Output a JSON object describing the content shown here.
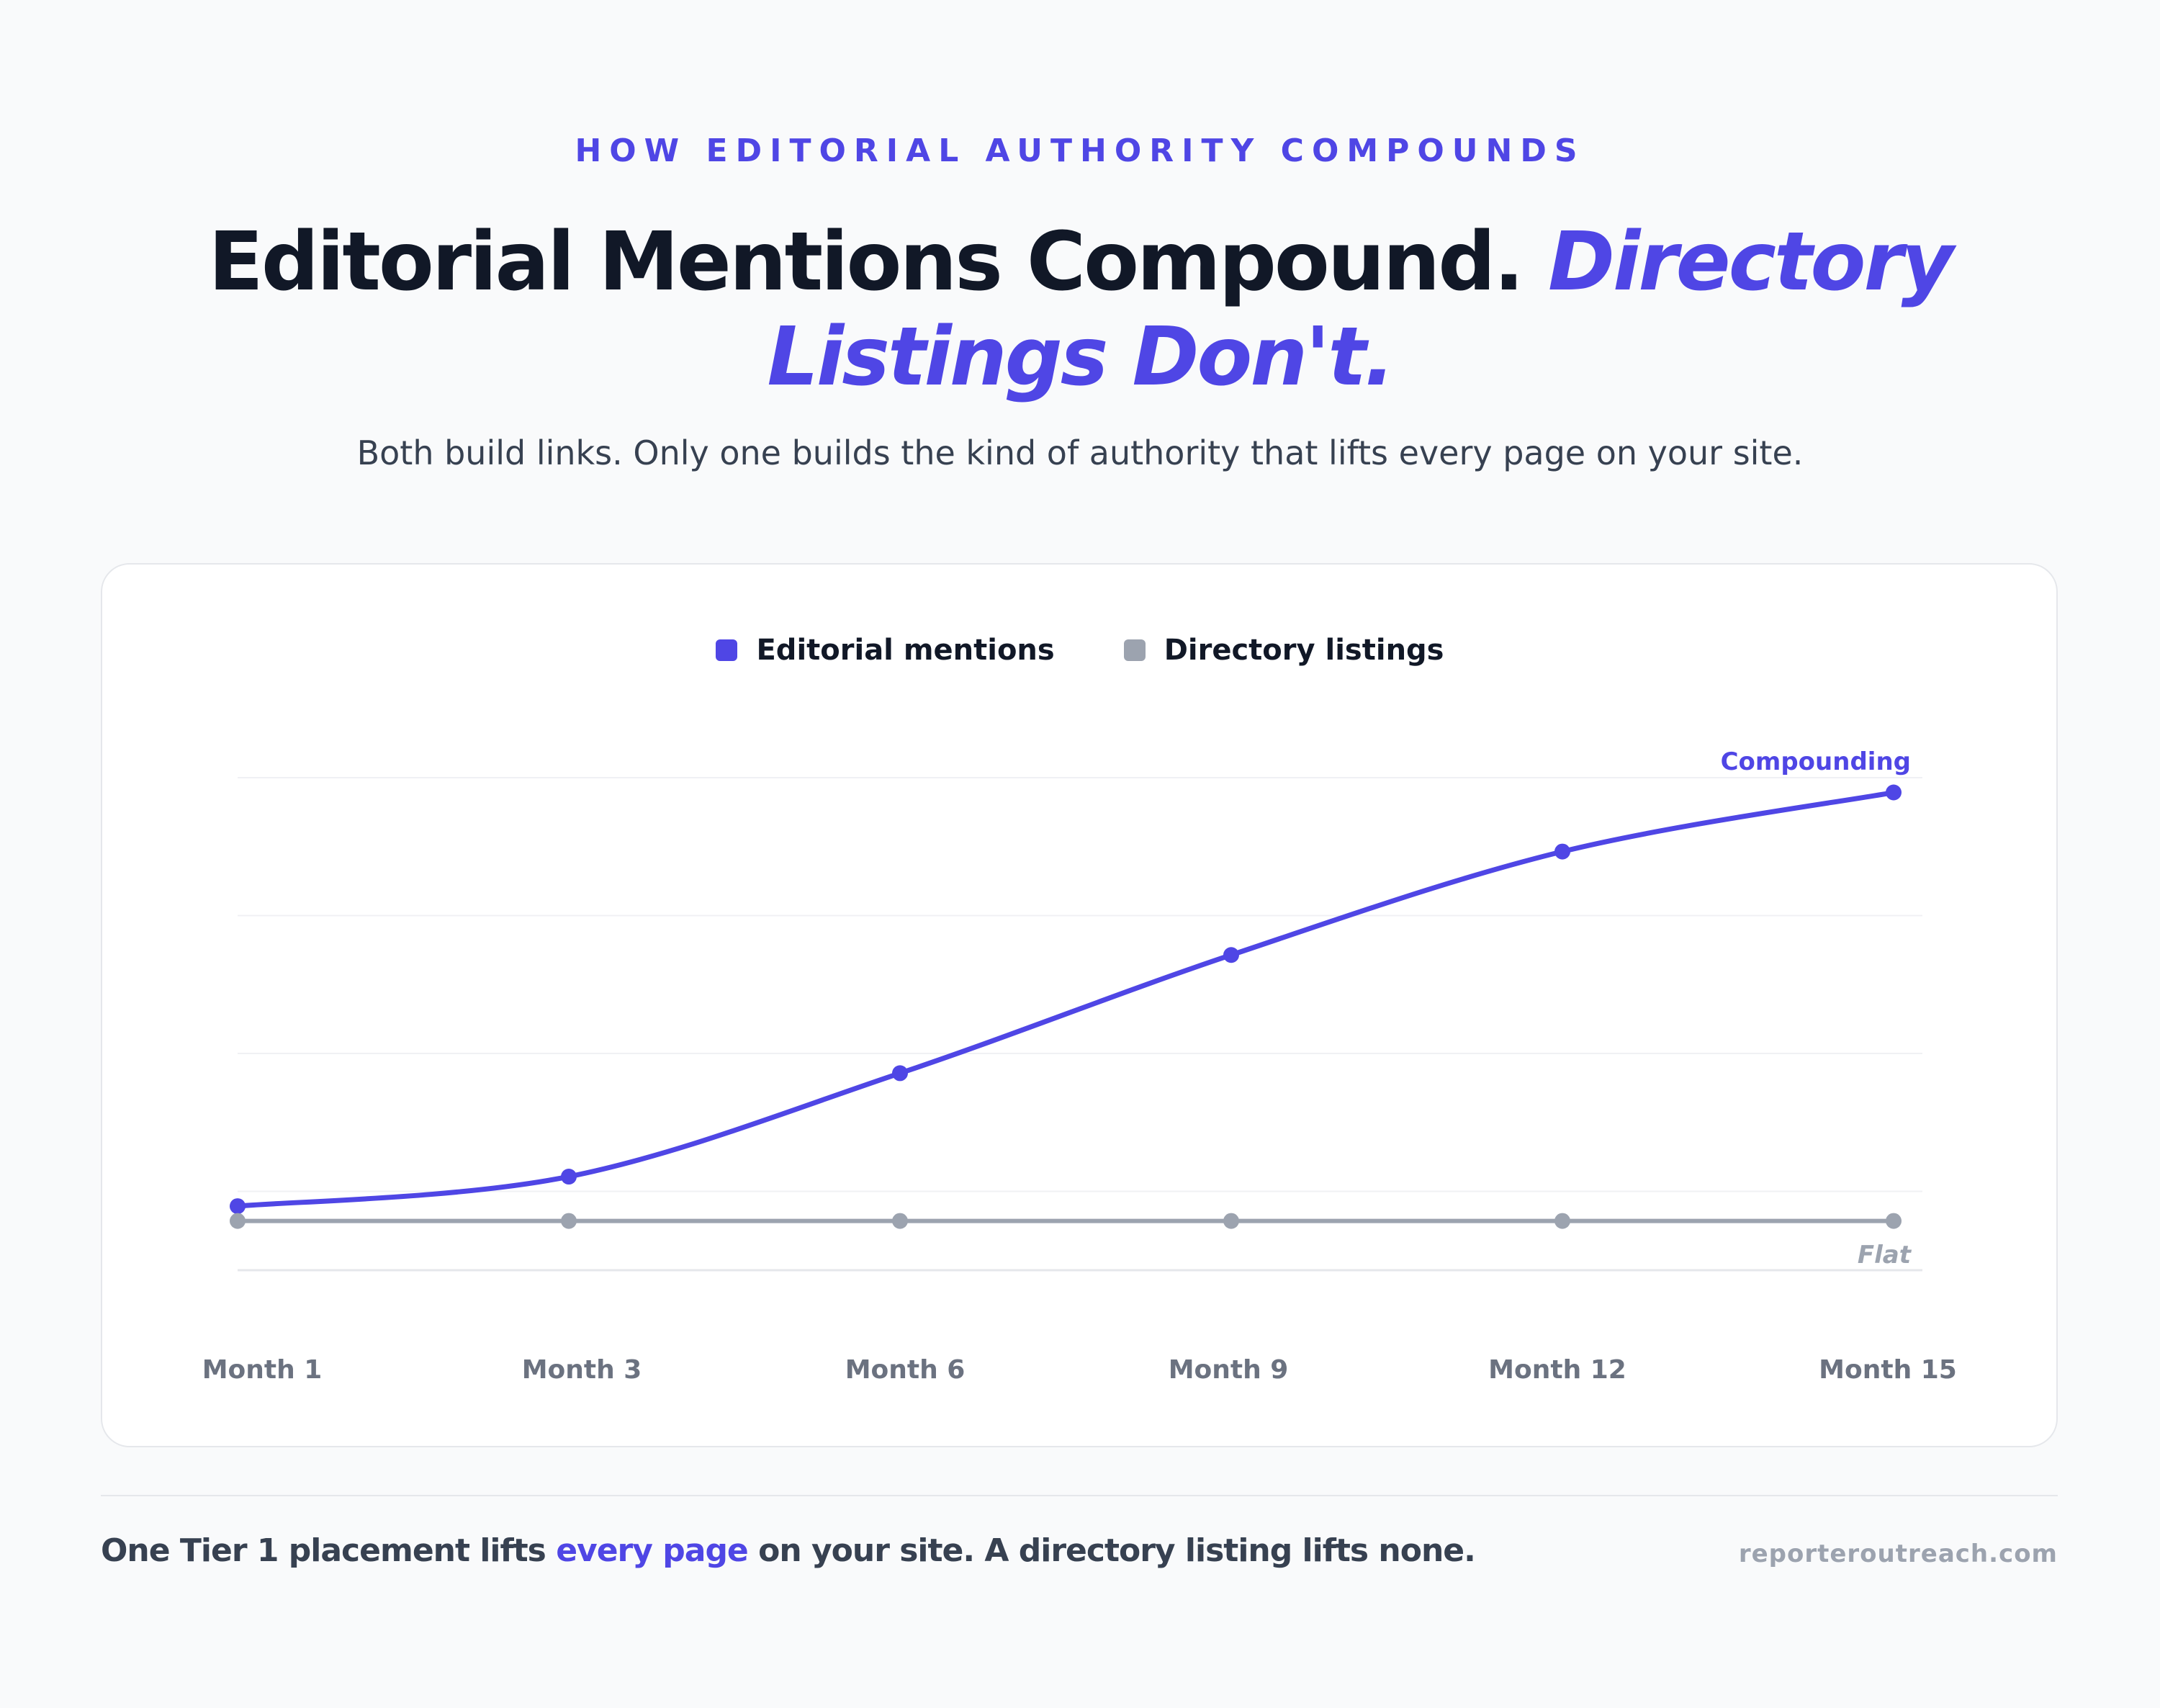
{
  "eyebrow": "HOW EDITORIAL AUTHORITY COMPOUNDS",
  "headline": {
    "main": "Editorial Mentions Compound. ",
    "accent": "Directory Listings Don't."
  },
  "subhead": "Both build links. Only one builds the kind of authority that lifts every page on your site.",
  "colors": {
    "accent": "#4f46e5",
    "flat": "#9ca3af",
    "grid": "#f0f1f4",
    "tick": "#6b7280"
  },
  "chart_data": {
    "type": "line",
    "title": "",
    "xlabel": "",
    "ylabel": "",
    "categories": [
      "Month 1",
      "Month 3",
      "Month 6",
      "Month 9",
      "Month 12",
      "Month 15"
    ],
    "ylim": [
      0,
      100
    ],
    "grid": true,
    "legend_position": "top-center",
    "series": [
      {
        "name": "Editorial mentions",
        "values": [
          13,
          19,
          40,
          64,
          85,
          97
        ],
        "color": "#4f46e5",
        "end_label": "Compounding"
      },
      {
        "name": "Directory listings",
        "values": [
          10,
          10,
          10,
          10,
          10,
          10
        ],
        "color": "#9ca3af",
        "end_label": "Flat"
      }
    ]
  },
  "footer": {
    "before": "One Tier 1 placement lifts ",
    "highlight": "every page",
    "after": " on your site. A directory listing lifts none.",
    "site": "reporteroutreach.com"
  }
}
